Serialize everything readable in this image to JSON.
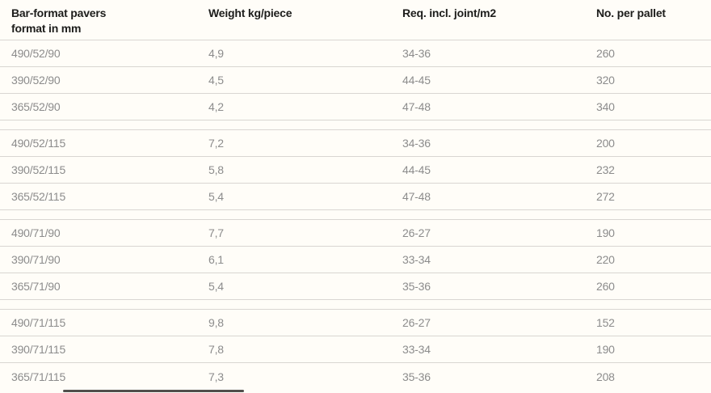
{
  "colors": {
    "bg": "#fffdf8",
    "header-text": "#1d1d1b",
    "body-text": "#8c8c8c",
    "line": "#d9d6d2",
    "scrollbar": "#504e4b"
  },
  "chart_data": {
    "type": "table",
    "title": "",
    "columns": [
      "Bar-format pavers format in mm",
      "Weight kg/piece",
      "Req. incl. joint/m2",
      "No. per pallet"
    ],
    "column_header_lines": [
      [
        "Bar-format pavers",
        "format in mm"
      ],
      [
        "Weight kg/piece"
      ],
      [
        "Req. incl. joint/m2"
      ],
      [
        "No. per pallet"
      ]
    ],
    "row_groups": [
      [
        [
          "490/52/90",
          "4,9",
          "34-36",
          "260"
        ],
        [
          "390/52/90",
          "4,5",
          "44-45",
          "320"
        ],
        [
          "365/52/90",
          "4,2",
          "47-48",
          "340"
        ]
      ],
      [
        [
          "490/52/115",
          "7,2",
          "34-36",
          "200"
        ],
        [
          "390/52/115",
          "5,8",
          "44-45",
          "232"
        ],
        [
          "365/52/115",
          "5,4",
          "47-48",
          "272"
        ]
      ],
      [
        [
          "490/71/90",
          "7,7",
          "26-27",
          "190"
        ],
        [
          "390/71/90",
          "6,1",
          "33-34",
          "220"
        ],
        [
          "365/71/90",
          "5,4",
          "35-36",
          "260"
        ]
      ],
      [
        [
          "490/71/115",
          "9,8",
          "26-27",
          "152"
        ],
        [
          "390/71/115",
          "7,8",
          "33-34",
          "190"
        ],
        [
          "365/71/115",
          "7,3",
          "35-36",
          "208"
        ]
      ]
    ]
  }
}
